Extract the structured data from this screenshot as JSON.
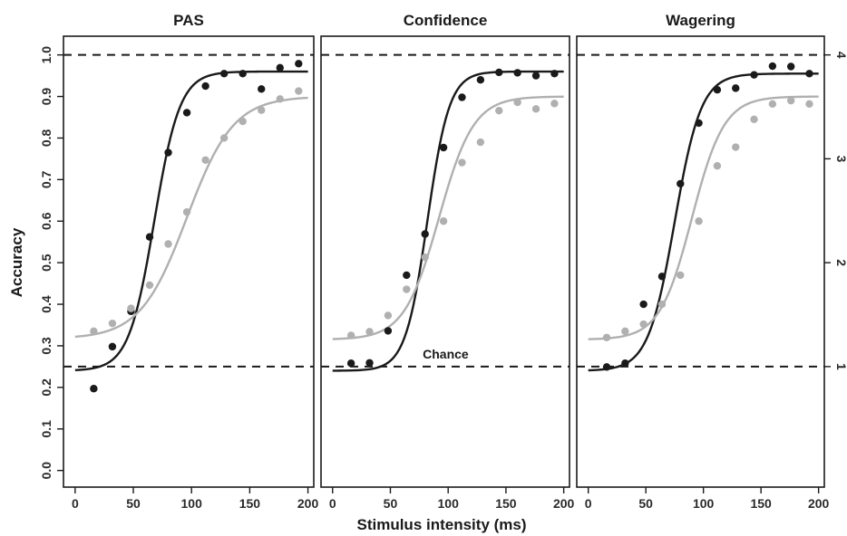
{
  "chart_data": {
    "type": "scatter",
    "xlabel": "Stimulus intensity (ms)",
    "ylabel": "Accuracy",
    "xlim": [
      -10,
      205
    ],
    "ylim": [
      -0.04,
      1.045
    ],
    "x_ticks": [
      "0",
      "50",
      "100",
      "150",
      "200"
    ],
    "y_ticks": [
      "0.0",
      "0.1",
      "0.2",
      "0.3",
      "0.4",
      "0.5",
      "0.6",
      "0.7",
      "0.8",
      "0.9",
      "1.0"
    ],
    "right_axis_ticks": [
      {
        "label": "1",
        "accuracy": 0.25
      },
      {
        "label": "2",
        "accuracy": 0.5
      },
      {
        "label": "3",
        "accuracy": 0.75
      },
      {
        "label": "4",
        "accuracy": 1.0
      }
    ],
    "reference_lines": [
      1.0,
      0.25
    ],
    "annotation": "Chance",
    "colors": {
      "dark": "#1a1a1a",
      "light": "#b0b0b0"
    },
    "panels": [
      {
        "title": "PAS",
        "series": [
          {
            "color": "#1a1a1a",
            "x": [
              16,
              32,
              48,
              64,
              80,
              96,
              112,
              128,
              144,
              160,
              176,
              192
            ],
            "y": [
              0.197,
              0.298,
              0.383,
              0.562,
              0.765,
              0.861,
              0.925,
              0.955,
              0.955,
              0.918,
              0.969,
              0.979
            ],
            "fit": {
              "lower": 0.24,
              "upper": 0.96,
              "midpoint": 68,
              "slope": 11
            }
          },
          {
            "color": "#b0b0b0",
            "x": [
              16,
              32,
              48,
              64,
              80,
              96,
              112,
              128,
              144,
              160,
              176,
              192
            ],
            "y": [
              0.335,
              0.354,
              0.39,
              0.446,
              0.545,
              0.622,
              0.747,
              0.8,
              0.84,
              0.867,
              0.894,
              0.913
            ],
            "fit": {
              "lower": 0.317,
              "upper": 0.9,
              "midpoint": 96,
              "slope": 20
            }
          }
        ]
      },
      {
        "title": "Confidence",
        "series": [
          {
            "color": "#1a1a1a",
            "x": [
              16,
              32,
              48,
              64,
              80,
              96,
              112,
              128,
              144,
              160,
              176,
              192
            ],
            "y": [
              0.258,
              0.259,
              0.336,
              0.47,
              0.569,
              0.777,
              0.898,
              0.94,
              0.958,
              0.957,
              0.95,
              0.955
            ],
            "fit": {
              "lower": 0.24,
              "upper": 0.96,
              "midpoint": 82,
              "slope": 9.5
            }
          },
          {
            "color": "#b0b0b0",
            "x": [
              16,
              32,
              48,
              64,
              80,
              96,
              112,
              128,
              144,
              160,
              176,
              192
            ],
            "y": [
              0.325,
              0.334,
              0.373,
              0.436,
              0.513,
              0.6,
              0.741,
              0.79,
              0.866,
              0.886,
              0.87,
              0.883
            ],
            "fit": {
              "lower": 0.315,
              "upper": 0.9,
              "midpoint": 92,
              "slope": 15
            }
          }
        ]
      },
      {
        "title": "Wagering",
        "series": [
          {
            "color": "#1a1a1a",
            "x": [
              16,
              32,
              48,
              64,
              80,
              96,
              112,
              128,
              144,
              160,
              176,
              192
            ],
            "y": [
              0.249,
              0.258,
              0.4,
              0.467,
              0.69,
              0.836,
              0.916,
              0.92,
              0.952,
              0.973,
              0.972,
              0.955
            ],
            "fit": {
              "lower": 0.24,
              "upper": 0.955,
              "midpoint": 75,
              "slope": 11.5
            }
          },
          {
            "color": "#b0b0b0",
            "x": [
              16,
              32,
              48,
              64,
              80,
              96,
              112,
              128,
              144,
              160,
              176,
              192
            ],
            "y": [
              0.32,
              0.335,
              0.352,
              0.4,
              0.47,
              0.6,
              0.733,
              0.778,
              0.845,
              0.882,
              0.89,
              0.882
            ],
            "fit": {
              "lower": 0.315,
              "upper": 0.9,
              "midpoint": 90,
              "slope": 14
            }
          }
        ]
      }
    ]
  }
}
